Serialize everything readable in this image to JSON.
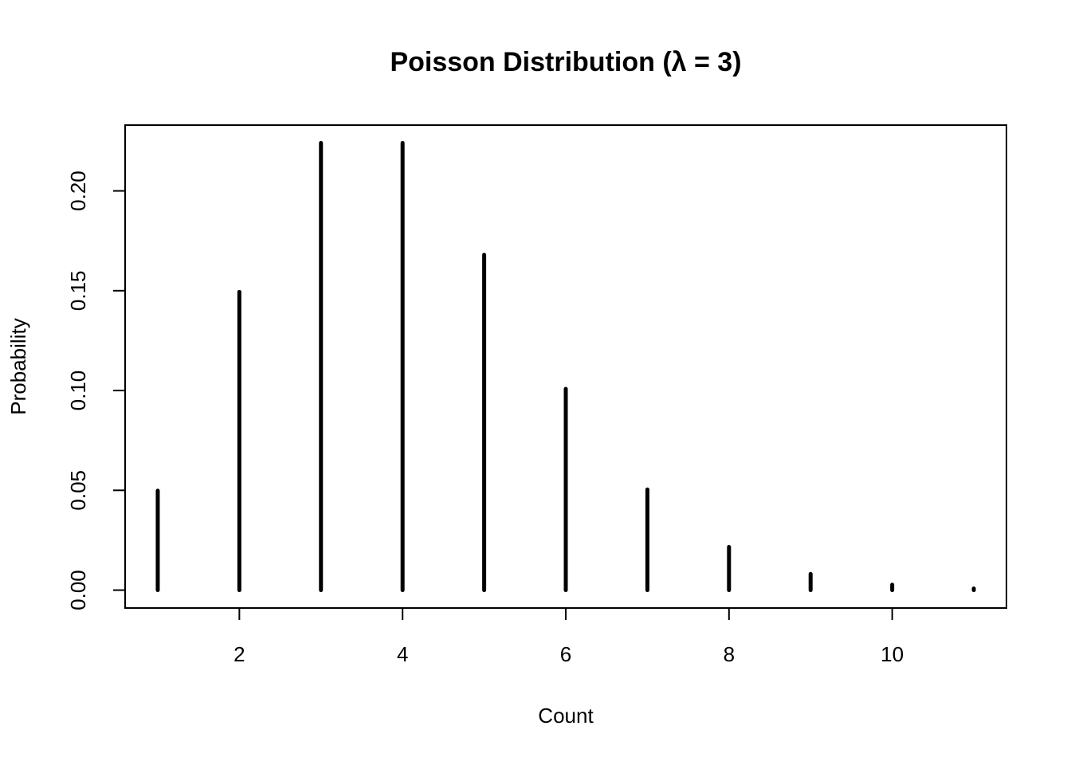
{
  "chart_data": {
    "type": "stem",
    "title": "Poisson Distribution (λ = 3)",
    "x_label": "Count",
    "y_label": "Probability",
    "x": [
      1,
      2,
      3,
      4,
      5,
      6,
      7,
      8,
      9,
      10,
      11
    ],
    "values": [
      0.0498,
      0.1494,
      0.224,
      0.224,
      0.168,
      0.1008,
      0.0504,
      0.0216,
      0.0081,
      0.0027,
      0.0008
    ],
    "color": "#000000",
    "xlim": [
      0.6,
      11.4
    ],
    "ylim": [
      -0.00896,
      0.23296
    ],
    "xticks": [
      2,
      4,
      6,
      8,
      10
    ],
    "yticks": [
      {
        "value": 0,
        "label": "0.00"
      },
      {
        "value": 0.05,
        "label": "0.05"
      },
      {
        "value": 0.1,
        "label": "0.10"
      },
      {
        "value": 0.15,
        "label": "0.15"
      },
      {
        "value": 0.2,
        "label": "0.20"
      }
    ]
  }
}
